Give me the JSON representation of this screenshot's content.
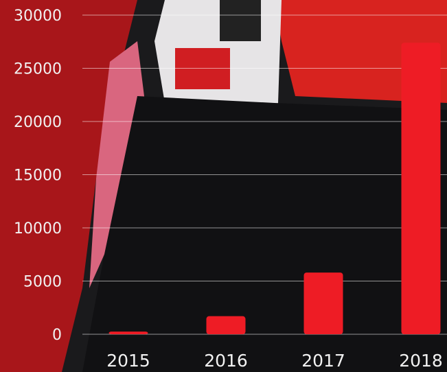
{
  "chart_data": {
    "type": "bar",
    "categories": [
      "2015",
      "2016",
      "2017",
      "2018"
    ],
    "values": [
      250,
      1700,
      5800,
      27400
    ],
    "color": "#ee1c25",
    "ylim": [
      0,
      30000
    ],
    "yticks": [
      0,
      5000,
      10000,
      15000,
      20000,
      25000,
      30000
    ],
    "grid": true
  }
}
